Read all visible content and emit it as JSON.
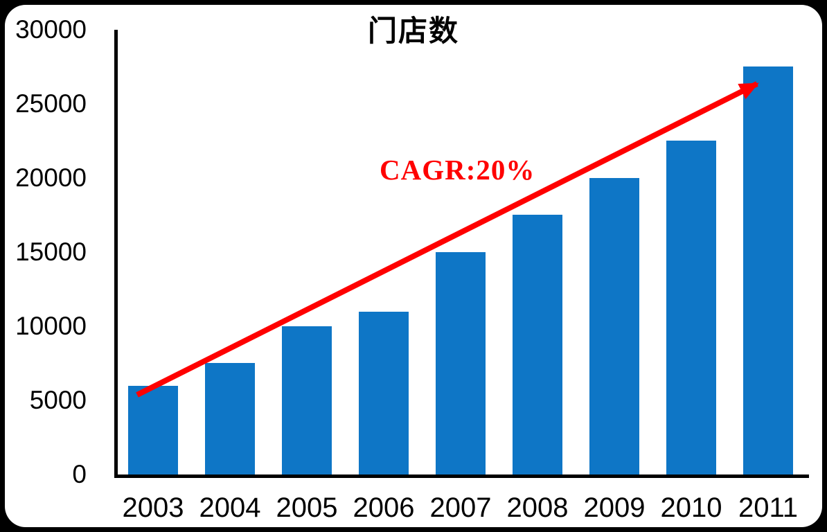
{
  "chart_data": {
    "type": "bar",
    "title": "门店数",
    "categories": [
      "2003",
      "2004",
      "2005",
      "2006",
      "2007",
      "2008",
      "2009",
      "2010",
      "2011"
    ],
    "values": [
      6000,
      7500,
      10000,
      11000,
      15000,
      17500,
      20000,
      22500,
      27500
    ],
    "xlabel": "",
    "ylabel": "",
    "ylim": [
      0,
      30000
    ],
    "yticks": [
      0,
      5000,
      10000,
      15000,
      20000,
      25000,
      30000
    ],
    "grid": false,
    "legend": "none",
    "annotation": {
      "label": "CAGR:20%",
      "color": "#FF0000",
      "arrow_from_category": "2003",
      "arrow_to_category": "2011"
    },
    "colors": {
      "bar": "#0E76C6",
      "axis": "#000000",
      "text": "#000000",
      "background": "#FFFFFF",
      "outside": "#000000"
    }
  }
}
